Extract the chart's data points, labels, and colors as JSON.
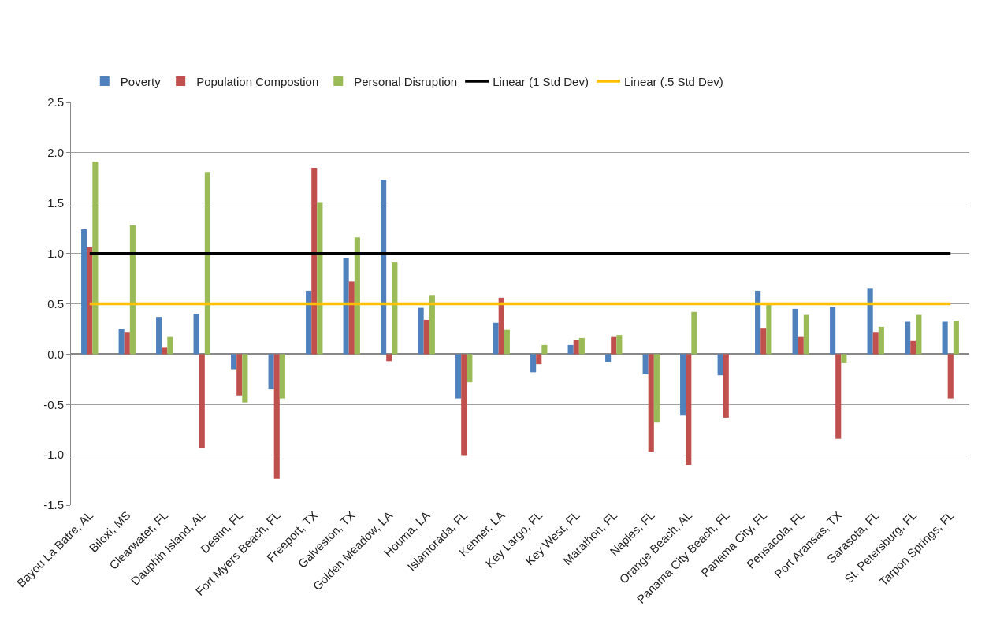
{
  "chart_data": {
    "type": "bar",
    "categories": [
      "Bayou La Batre, AL",
      "Biloxi, MS",
      "Clearwater, FL",
      "Dauphin Island, AL",
      "Destin, FL",
      "Fort Myers Beach, FL",
      "Freeport, TX",
      "Galveston, TX",
      "Golden Meadow, LA",
      "Houma, LA",
      "Islamorada, FL",
      "Kenner, LA",
      "Key Largo, FL",
      "Key West, FL",
      "Marathon, FL",
      "Naples, FL",
      "Orange Beach, AL",
      "Panama City Beach, FL",
      "Panama City, FL",
      "Pensacola, FL",
      "Port Aransas, TX",
      "Sarasota, FL",
      "St. Petersburg, FL",
      "Tarpon Springs, FL"
    ],
    "series": [
      {
        "name": "Poverty",
        "color": "#4f81bd",
        "values": [
          1.24,
          0.25,
          0.37,
          0.4,
          -0.15,
          -0.35,
          0.63,
          0.95,
          1.73,
          0.46,
          -0.44,
          0.31,
          -0.18,
          0.09,
          -0.08,
          -0.2,
          -0.61,
          -0.21,
          0.63,
          0.45,
          0.47,
          0.65,
          0.32,
          0.32
        ]
      },
      {
        "name": "Population Compostion",
        "color": "#c0504d",
        "values": [
          1.06,
          0.22,
          0.07,
          -0.93,
          -0.41,
          -1.24,
          1.85,
          0.72,
          -0.07,
          0.34,
          -1.01,
          0.56,
          -0.1,
          0.14,
          0.17,
          -0.97,
          -1.1,
          -0.63,
          0.26,
          0.17,
          -0.84,
          0.22,
          0.13,
          -0.44
        ]
      },
      {
        "name": "Personal Disruption",
        "color": "#9bbb59",
        "values": [
          1.91,
          1.28,
          0.17,
          1.81,
          -0.48,
          -0.44,
          1.51,
          1.16,
          0.91,
          0.58,
          -0.28,
          0.24,
          0.09,
          0.16,
          0.19,
          -0.68,
          0.42,
          0.0,
          0.49,
          0.39,
          -0.09,
          0.27,
          0.39,
          0.33
        ]
      },
      {
        "name": "Linear (1 Std Dev)",
        "type": "line",
        "color": "#000000",
        "values": [
          1.0,
          1.0,
          1.0,
          1.0,
          1.0,
          1.0,
          1.0,
          1.0,
          1.0,
          1.0,
          1.0,
          1.0,
          1.0,
          1.0,
          1.0,
          1.0,
          1.0,
          1.0,
          1.0,
          1.0,
          1.0,
          1.0,
          1.0,
          1.0
        ]
      },
      {
        "name": "Linear (.5 Std Dev)",
        "type": "line",
        "color": "#ffc000",
        "values": [
          0.5,
          0.5,
          0.5,
          0.5,
          0.5,
          0.5,
          0.5,
          0.5,
          0.5,
          0.5,
          0.5,
          0.5,
          0.5,
          0.5,
          0.5,
          0.5,
          0.5,
          0.5,
          0.5,
          0.5,
          0.5,
          0.5,
          0.5,
          0.5
        ]
      }
    ],
    "ylim": [
      -1.5,
      2.5
    ],
    "yticks": [
      -1.5,
      {
        "value": -1.0,
        "label": "-1.0"
      },
      -0.5,
      {
        "value": 0.0,
        "label": "0.0"
      },
      0.5,
      {
        "value": 1.0,
        "label": "1.0"
      },
      1.5,
      {
        "value": 2.0,
        "label": "2.0"
      },
      2.5
    ],
    "grid": "y",
    "legend": "top left",
    "marker": "none",
    "line_style": "solid"
  }
}
